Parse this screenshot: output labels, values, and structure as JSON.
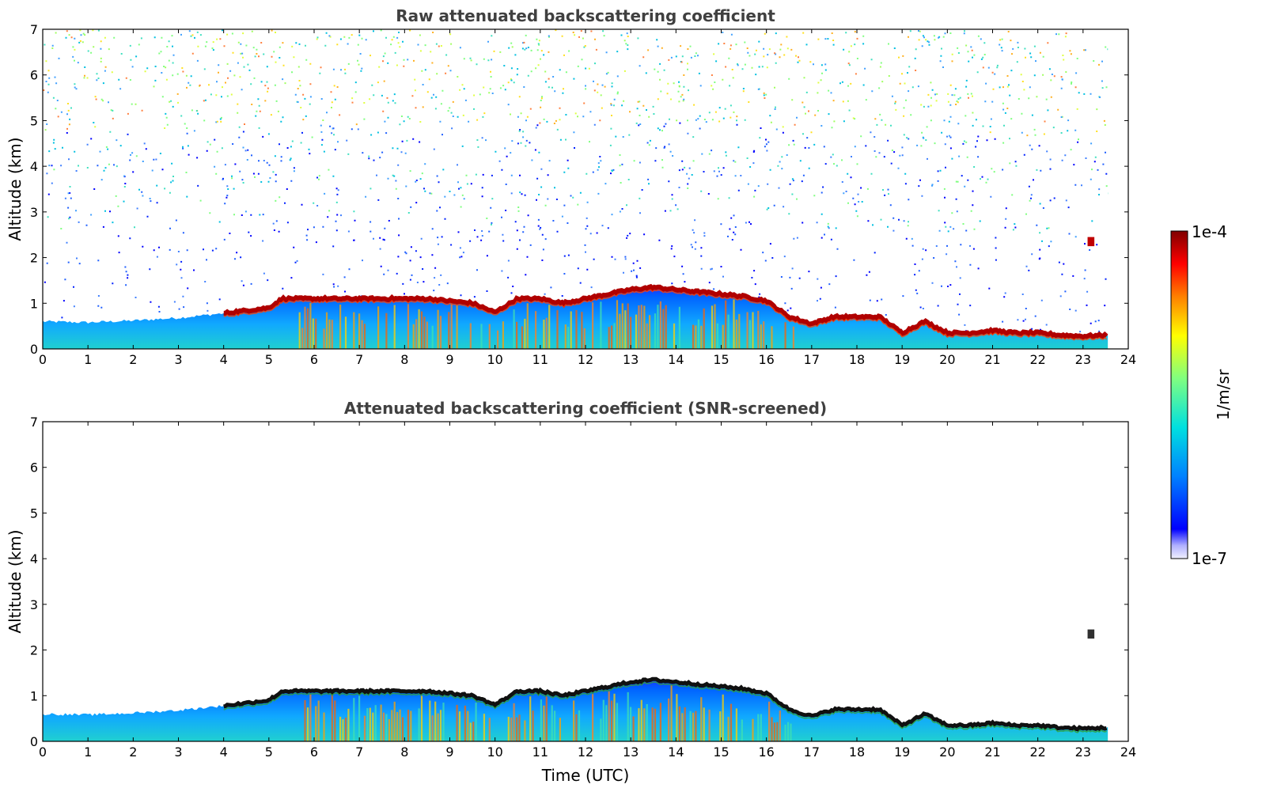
{
  "chart_data": [
    {
      "type": "heatmap",
      "title": "Raw attenuated backscattering coefficient",
      "xlabel": "",
      "ylabel": "Altitude (km)",
      "xlim": [
        0,
        24
      ],
      "ylim": [
        0,
        7
      ],
      "xticks": [
        "0",
        "1",
        "2",
        "3",
        "4",
        "5",
        "6",
        "7",
        "8",
        "9",
        "10",
        "11",
        "12",
        "13",
        "14",
        "15",
        "16",
        "17",
        "18",
        "19",
        "20",
        "21",
        "22",
        "23",
        "24"
      ],
      "yticks": [
        "0",
        "1",
        "2",
        "3",
        "4",
        "5",
        "6",
        "7"
      ],
      "data_end_time": 23.55,
      "noise": true,
      "boundary_layer_top_km": {
        "x": [
          0,
          1,
          2,
          3,
          4,
          5,
          5.3,
          6,
          7,
          8,
          8.5,
          9,
          9.5,
          10,
          10.5,
          11,
          11.5,
          12,
          12.5,
          13,
          13.5,
          14,
          14.5,
          15,
          15.5,
          16,
          16.5,
          17,
          17.5,
          18,
          18.5,
          19,
          19.5,
          20,
          20.5,
          21,
          21.5,
          22,
          22.5,
          23,
          23.55
        ],
        "y": [
          0.6,
          0.58,
          0.62,
          0.68,
          0.78,
          0.9,
          1.1,
          1.1,
          1.1,
          1.1,
          1.1,
          1.05,
          1.0,
          0.8,
          1.1,
          1.1,
          1.0,
          1.1,
          1.2,
          1.3,
          1.35,
          1.3,
          1.25,
          1.2,
          1.15,
          1.05,
          0.7,
          0.55,
          0.7,
          0.7,
          0.7,
          0.35,
          0.6,
          0.35,
          0.35,
          0.4,
          0.35,
          0.35,
          0.3,
          0.28,
          0.3
        ]
      },
      "cloud_patch": {
        "x": [
          23.1,
          23.25
        ],
        "y": [
          2.25,
          2.45
        ]
      }
    },
    {
      "type": "heatmap",
      "title": "Attenuated backscattering coefficient (SNR-screened)",
      "xlabel": "Time (UTC)",
      "ylabel": "Altitude (km)",
      "xlim": [
        0,
        24
      ],
      "ylim": [
        0,
        7
      ],
      "xticks": [
        "0",
        "1",
        "2",
        "3",
        "4",
        "5",
        "6",
        "7",
        "8",
        "9",
        "10",
        "11",
        "12",
        "13",
        "14",
        "15",
        "16",
        "17",
        "18",
        "19",
        "20",
        "21",
        "22",
        "23",
        "24"
      ],
      "yticks": [
        "0",
        "1",
        "2",
        "3",
        "4",
        "5",
        "6",
        "7"
      ],
      "data_end_time": 23.55,
      "noise": false,
      "boundary_layer_top_km": {
        "x": [
          0,
          1,
          2,
          3,
          4,
          5,
          5.3,
          6,
          7,
          8,
          8.5,
          9,
          9.5,
          10,
          10.5,
          11,
          11.5,
          12,
          12.5,
          13,
          13.5,
          14,
          14.5,
          15,
          15.5,
          16,
          16.5,
          17,
          17.5,
          18,
          18.5,
          19,
          19.5,
          20,
          20.5,
          21,
          21.5,
          22,
          22.5,
          23,
          23.55
        ],
        "y": [
          0.6,
          0.58,
          0.62,
          0.68,
          0.78,
          0.9,
          1.1,
          1.1,
          1.1,
          1.1,
          1.1,
          1.05,
          1.0,
          0.8,
          1.1,
          1.1,
          1.0,
          1.1,
          1.2,
          1.3,
          1.35,
          1.3,
          1.25,
          1.2,
          1.15,
          1.05,
          0.7,
          0.55,
          0.7,
          0.7,
          0.7,
          0.35,
          0.6,
          0.35,
          0.35,
          0.4,
          0.35,
          0.35,
          0.3,
          0.28,
          0.3
        ]
      },
      "cloud_patch": {
        "x": [
          23.1,
          23.25
        ],
        "y": [
          2.25,
          2.45
        ]
      }
    }
  ],
  "colorbar": {
    "label": "1/m/sr",
    "max_label": "1e-4",
    "min_label": "1e-7",
    "stops": [
      "#f0f0ff",
      "#b0b0ff",
      "#0000ff",
      "#0080ff",
      "#00e0e0",
      "#80ff80",
      "#ffff00",
      "#ff8000",
      "#ff0000",
      "#800000"
    ]
  }
}
